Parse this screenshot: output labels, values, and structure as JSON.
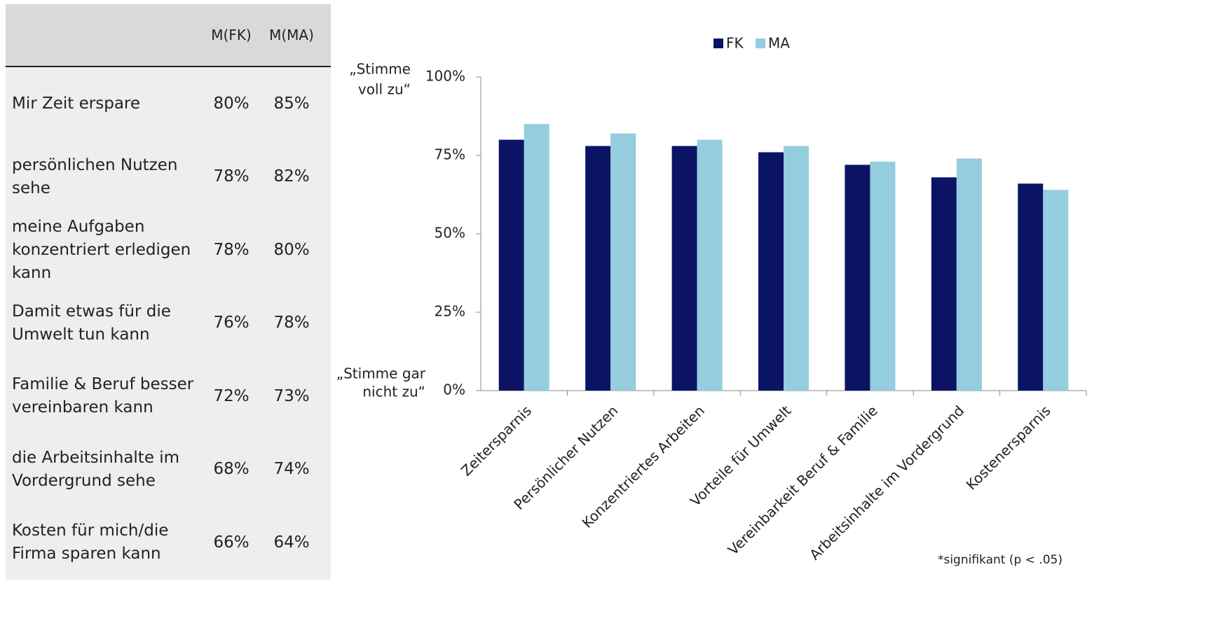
{
  "table": {
    "header": [
      "",
      "M(FK)",
      "M(MA)"
    ],
    "rows": [
      [
        "Mir Zeit erspare",
        "80%",
        "85%"
      ],
      [
        "persönlichen Nutzen sehe",
        "78%",
        "82%"
      ],
      [
        "meine Aufgaben konzentriert erledigen kann",
        "78%",
        "80%"
      ],
      [
        "Damit etwas für die Umwelt tun kann",
        "76%",
        "78%"
      ],
      [
        "Familie & Beruf besser vereinbaren kann",
        "72%",
        "73%"
      ],
      [
        "die Arbeitsinhalte im Vordergrund sehe",
        "68%",
        "74%"
      ],
      [
        "Kosten für mich/die Firma sparen kann",
        "66%",
        "64%"
      ]
    ]
  },
  "chart_data": {
    "type": "bar",
    "categories": [
      "Zeitersparnis",
      "Persönlicher Nutzen",
      "Konzentriertes Arbeiten",
      "Vorteile für Umwelt",
      "Vereinbarkeit Beruf & Familie",
      "Arbeitsinhalte im Vordergrund",
      "Kostenersparnis"
    ],
    "series": [
      {
        "name": "FK",
        "color": "#0b1464",
        "values": [
          80,
          78,
          78,
          76,
          72,
          68,
          66
        ]
      },
      {
        "name": "MA",
        "color": "#94cdde",
        "values": [
          85,
          82,
          80,
          78,
          73,
          74,
          64
        ]
      }
    ],
    "ylim": [
      0,
      100
    ],
    "yticks": [
      {
        "value": 0,
        "label": "0%"
      },
      {
        "value": 25,
        "label": "25%"
      },
      {
        "value": 50,
        "label": "50%"
      },
      {
        "value": 75,
        "label": "75%"
      },
      {
        "value": 100,
        "label": "100%"
      }
    ],
    "y_label_top": [
      "„Stimme",
      "voll zu“"
    ],
    "y_label_bottom": [
      "„Stimme gar",
      "nicht zu“"
    ],
    "footnote": "*signifikant (p < .05)",
    "legend": "top"
  }
}
